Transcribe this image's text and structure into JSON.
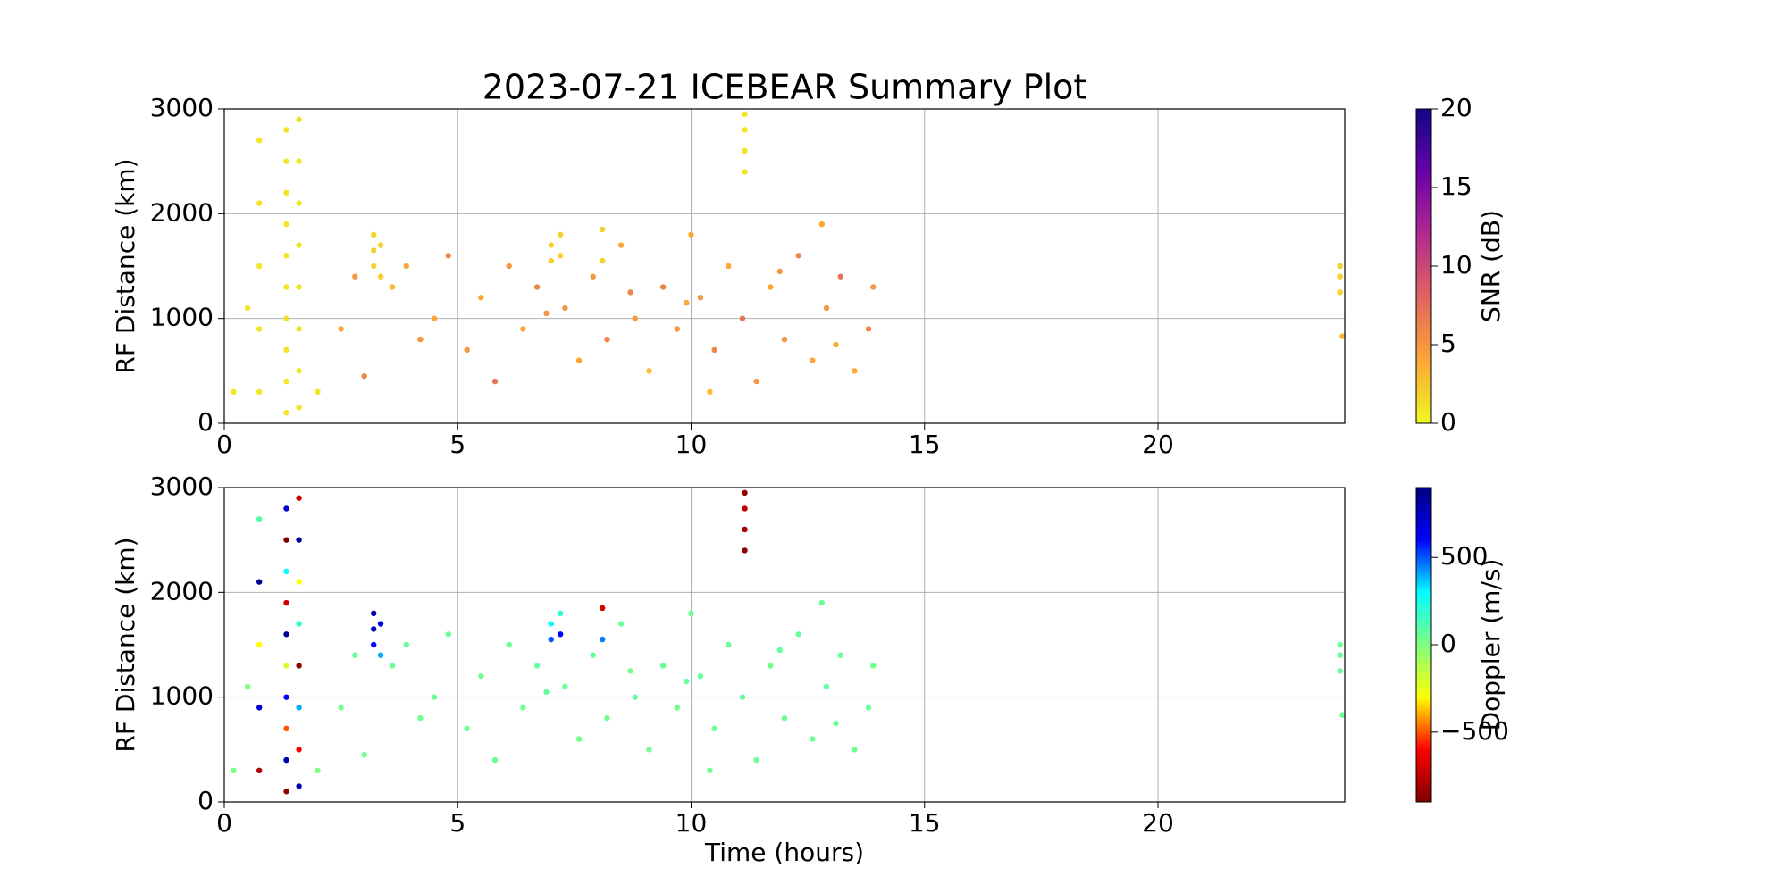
{
  "chart_data": [
    {
      "type": "scatter",
      "title": "2023-07-21 ICEBEAR Summary Plot",
      "ylabel": "RF Distance (km)",
      "xlim": [
        0,
        24
      ],
      "ylim": [
        0,
        3000
      ],
      "xticks": [
        0,
        5,
        10,
        15,
        20
      ],
      "yticks": [
        0,
        1000,
        2000,
        3000
      ],
      "grid": true,
      "colorbar": {
        "label": "SNR (dB)",
        "lim": [
          0,
          20
        ],
        "ticks": [
          0,
          5,
          10,
          15,
          20
        ],
        "colormap": [
          "#f0f921",
          "#fca636",
          "#e16462",
          "#b12a90",
          "#6a00a8",
          "#0d0887"
        ]
      },
      "x": [
        0.75,
        0.75,
        0.75,
        0.75,
        0.75,
        1.33,
        1.33,
        1.33,
        1.33,
        1.33,
        1.33,
        1.33,
        1.33,
        1.33,
        1.33,
        1.6,
        1.6,
        1.6,
        1.6,
        1.6,
        1.6,
        1.6,
        1.6,
        0.2,
        2.0,
        0.5,
        3.2,
        3.2,
        3.2,
        3.35,
        3.35,
        7.0,
        7.0,
        7.2,
        7.2,
        8.1,
        8.1,
        11.15,
        11.15,
        11.15,
        11.15,
        23.9,
        23.9,
        23.9,
        23.95,
        2.5,
        2.8,
        3.0,
        3.6,
        3.9,
        4.2,
        4.5,
        4.8,
        5.2,
        5.5,
        5.8,
        6.1,
        6.4,
        6.7,
        7.3,
        7.6,
        7.9,
        8.2,
        8.5,
        8.8,
        9.1,
        9.4,
        9.7,
        10.0,
        10.2,
        10.5,
        10.8,
        11.1,
        11.4,
        11.7,
        12.0,
        12.3,
        12.6,
        12.9,
        13.2,
        13.5,
        13.8,
        13.9,
        12.8,
        10.4,
        6.9,
        9.9,
        8.7,
        11.9,
        13.1
      ],
      "values": [
        300,
        900,
        1500,
        2100,
        2700,
        100,
        400,
        700,
        1000,
        1300,
        1600,
        1900,
        2200,
        2500,
        2800,
        150,
        500,
        900,
        1300,
        1700,
        2100,
        2500,
        2900,
        300,
        300,
        1100,
        1500,
        1650,
        1800,
        1400,
        1700,
        1550,
        1700,
        1600,
        1800,
        1550,
        1850,
        2400,
        2600,
        2800,
        2950,
        1250,
        1400,
        1500,
        830,
        900,
        1400,
        450,
        1300,
        1500,
        800,
        1000,
        1600,
        700,
        1200,
        400,
        1500,
        900,
        1300,
        1100,
        600,
        1400,
        800,
        1700,
        1000,
        500,
        1300,
        900,
        1800,
        1200,
        700,
        1500,
        1000,
        400,
        1300,
        800,
        1600,
        600,
        1100,
        1400,
        500,
        900,
        1300,
        1900,
        300,
        1050,
        1150,
        1250,
        1450,
        750
      ],
      "c": [
        1,
        1,
        1,
        1,
        1,
        1,
        1,
        1,
        1,
        1,
        1,
        1,
        1,
        1,
        1,
        1,
        1,
        1,
        1,
        1,
        1,
        1,
        1,
        1,
        1,
        1,
        2,
        2,
        2,
        2,
        2,
        2,
        2,
        2,
        2,
        2,
        2,
        1,
        1,
        1,
        1,
        2,
        2,
        2,
        3,
        4,
        5,
        6,
        3,
        4,
        5,
        4,
        6,
        5,
        4,
        7,
        5,
        4,
        6,
        5,
        4,
        5,
        6,
        4,
        5,
        3,
        6,
        5,
        4,
        5,
        6,
        4,
        7,
        5,
        4,
        5,
        6,
        4,
        5,
        7,
        4,
        6,
        5,
        4,
        3,
        5,
        4,
        6,
        5,
        4
      ]
    },
    {
      "type": "scatter",
      "ylabel": "RF Distance (km)",
      "xlabel": "Time (hours)",
      "xlim": [
        0,
        24
      ],
      "ylim": [
        0,
        3000
      ],
      "xticks": [
        0,
        5,
        10,
        15,
        20
      ],
      "yticks": [
        0,
        1000,
        2000,
        3000
      ],
      "grid": true,
      "colorbar": {
        "label": "Doppler (m/s)",
        "lim": [
          -900,
          900
        ],
        "ticks": [
          {
            "value": -500,
            "label": "−500"
          },
          0,
          500
        ],
        "colormap": [
          "#7f0000",
          "#ff0000",
          "#ffff00",
          "#7fff7f",
          "#00ffff",
          "#0000ff",
          "#00007f"
        ]
      },
      "x": [
        0.75,
        0.75,
        0.75,
        0.75,
        0.75,
        1.33,
        1.33,
        1.33,
        1.33,
        1.33,
        1.33,
        1.33,
        1.33,
        1.33,
        1.33,
        1.6,
        1.6,
        1.6,
        1.6,
        1.6,
        1.6,
        1.6,
        1.6,
        0.2,
        2.0,
        0.5,
        3.2,
        3.2,
        3.2,
        3.35,
        3.35,
        7.0,
        7.0,
        7.2,
        7.2,
        8.1,
        8.1,
        11.15,
        11.15,
        11.15,
        11.15,
        23.9,
        23.9,
        23.9,
        23.95,
        2.5,
        2.8,
        3.0,
        3.6,
        3.9,
        4.2,
        4.5,
        4.8,
        5.2,
        5.5,
        5.8,
        6.1,
        6.4,
        6.7,
        7.3,
        7.6,
        7.9,
        8.2,
        8.5,
        8.8,
        9.1,
        9.4,
        9.7,
        10.0,
        10.2,
        10.5,
        10.8,
        11.1,
        11.4,
        11.7,
        12.0,
        12.3,
        12.6,
        12.9,
        13.2,
        13.5,
        13.8,
        13.9,
        12.8,
        10.4,
        6.9,
        9.9,
        8.7,
        11.9,
        13.1
      ],
      "values": [
        300,
        900,
        1500,
        2100,
        2700,
        100,
        400,
        700,
        1000,
        1300,
        1600,
        1900,
        2200,
        2500,
        2800,
        150,
        500,
        900,
        1300,
        1700,
        2100,
        2500,
        2900,
        300,
        300,
        1100,
        1500,
        1650,
        1800,
        1400,
        1700,
        1550,
        1700,
        1600,
        1800,
        1550,
        1850,
        2400,
        2600,
        2800,
        2950,
        1250,
        1400,
        1500,
        830,
        900,
        1400,
        450,
        1300,
        1500,
        800,
        1000,
        1600,
        700,
        1200,
        400,
        1500,
        900,
        1300,
        1100,
        600,
        1400,
        800,
        1700,
        1000,
        500,
        1300,
        900,
        1800,
        1200,
        700,
        1500,
        1000,
        400,
        1300,
        800,
        1600,
        600,
        1100,
        1400,
        500,
        900,
        1300,
        1900,
        300,
        1050,
        1150,
        1250,
        1450,
        750
      ],
      "c": [
        -800,
        700,
        -300,
        850,
        100,
        -850,
        800,
        -500,
        600,
        -200,
        850,
        -700,
        300,
        -900,
        700,
        800,
        -600,
        400,
        -850,
        200,
        -300,
        850,
        -700,
        0,
        0,
        0,
        600,
        750,
        800,
        400,
        650,
        500,
        300,
        600,
        200,
        450,
        -700,
        -850,
        -800,
        -750,
        -850,
        50,
        50,
        50,
        50,
        40,
        60,
        30,
        50,
        70,
        40,
        50,
        60,
        30,
        40,
        50,
        60,
        40,
        70,
        50,
        30,
        60,
        40,
        50,
        60,
        40,
        50,
        30,
        60,
        70,
        40,
        50,
        60,
        40,
        30,
        50,
        60,
        40,
        70,
        50,
        40,
        60,
        30,
        50,
        40,
        60,
        50,
        40,
        70,
        50
      ]
    }
  ]
}
